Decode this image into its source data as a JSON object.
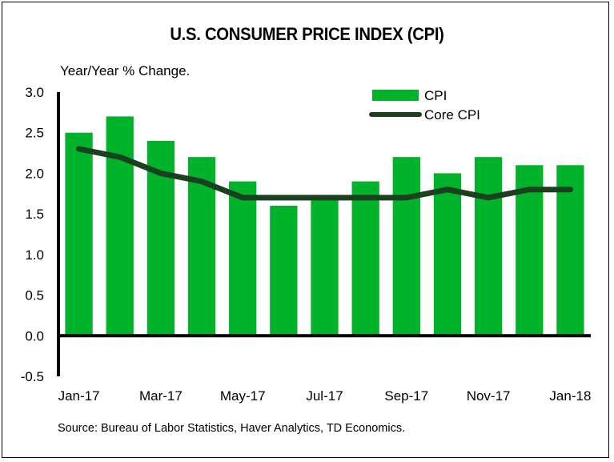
{
  "chart_data": {
    "type": "bar",
    "title": "U.S. CONSUMER PRICE INDEX (CPI)",
    "ylabel": "Year/Year % Change.",
    "xlabel": "",
    "source": "Source: Bureau of Labor Statistics, Haver Analytics, TD Economics.",
    "ylim": [
      -0.5,
      3.0
    ],
    "yticks": [
      "3.0",
      "2.5",
      "2.0",
      "1.5",
      "1.0",
      "0.5",
      "0.0",
      "-0.5"
    ],
    "ytick_values": [
      3.0,
      2.5,
      2.0,
      1.5,
      1.0,
      0.5,
      0.0,
      -0.5
    ],
    "categories": [
      "Jan-17",
      "Feb-17",
      "Mar-17",
      "Apr-17",
      "May-17",
      "Jun-17",
      "Jul-17",
      "Aug-17",
      "Sep-17",
      "Oct-17",
      "Nov-17",
      "Dec-17",
      "Jan-18"
    ],
    "xtick_labels": [
      "Jan-17",
      "Mar-17",
      "May-17",
      "Jul-17",
      "Sep-17",
      "Nov-17",
      "Jan-18"
    ],
    "grid": false,
    "legend_position": "top-right",
    "series": [
      {
        "name": "CPI",
        "type": "bar",
        "color": "#00b32a",
        "values": [
          2.5,
          2.7,
          2.4,
          2.2,
          1.9,
          1.6,
          1.7,
          1.9,
          2.2,
          2.0,
          2.2,
          2.1,
          2.1
        ]
      },
      {
        "name": "Core CPI",
        "type": "line",
        "color": "#1a4020",
        "values": [
          2.3,
          2.2,
          2.0,
          1.9,
          1.7,
          1.7,
          1.7,
          1.7,
          1.7,
          1.8,
          1.7,
          1.8,
          1.8
        ]
      }
    ]
  }
}
